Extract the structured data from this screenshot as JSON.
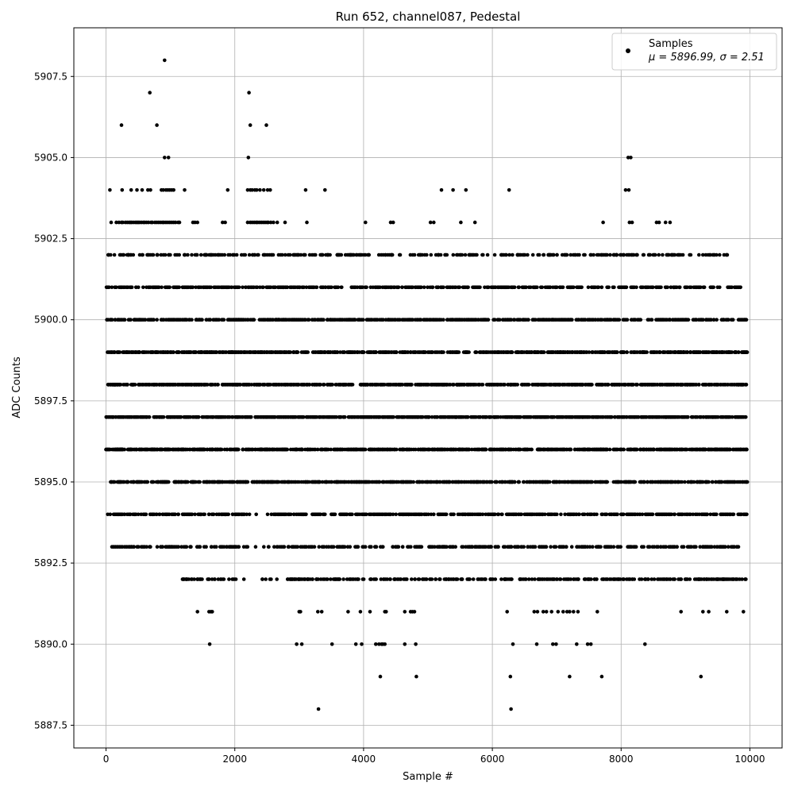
{
  "chart_data": {
    "type": "scatter",
    "title": "Run 652, channel087, Pedestal",
    "xlabel": "Sample #",
    "ylabel": "ADC Counts",
    "xlim": [
      -500,
      10500
    ],
    "ylim": [
      5886.8,
      5909.0
    ],
    "xticks": [
      0,
      2000,
      4000,
      6000,
      8000,
      10000
    ],
    "yticks": [
      5887.5,
      5890.0,
      5892.5,
      5895.0,
      5897.5,
      5900.0,
      5902.5,
      5905.0,
      5907.5
    ],
    "grid": true,
    "legend": {
      "position": "top-right",
      "entries": [
        {
          "label": "Samples",
          "stats": "μ = 5896.99, σ = 2.51",
          "color": "#000000"
        }
      ]
    },
    "marker_color": "#000000",
    "series": [
      {
        "name": "Samples",
        "levels": [
          {
            "y": 5888,
            "x": [
              3300,
              6290
            ]
          },
          {
            "y": 5889,
            "x": [
              4260,
              4820,
              6280,
              7200,
              7700,
              9240
            ]
          },
          {
            "y": 5890,
            "x": [
              1610,
              2960,
              3040,
              3510,
              3880,
              3970,
              4190,
              4240,
              4280,
              4300,
              4330,
              4640,
              4810,
              6320,
              6690,
              6940,
              6990,
              7310,
              7480,
              7530,
              8370
            ]
          },
          {
            "y": 5891,
            "x": [
              1420,
              1600,
              1630,
              1650,
              3000,
              3020,
              3290,
              3350,
              3760,
              3950,
              4100,
              4330,
              4350,
              4640,
              4730,
              4760,
              4790,
              6230,
              6650,
              6700,
              6790,
              6840,
              6920,
              7020,
              7100,
              7160,
              7200,
              7260,
              7330,
              7630,
              8930,
              9270,
              9360,
              9640,
              9900
            ]
          },
          {
            "y": 5892,
            "range": [
              1150,
              9950
            ],
            "count": 380,
            "seed": 13,
            "gap": [
              2000,
              2800
            ]
          },
          {
            "y": 5893,
            "range": [
              80,
              9960
            ],
            "count": 460,
            "seed": 29,
            "gap": [
              2200,
              2650
            ]
          },
          {
            "y": 5894,
            "range": [
              0,
              9960
            ],
            "count": 620,
            "seed": 41,
            "gap": [
              2150,
              2550
            ]
          },
          {
            "y": 5895,
            "range": [
              0,
              9960
            ],
            "count": 780,
            "seed": 53
          },
          {
            "y": 5896,
            "range": [
              0,
              9960
            ],
            "count": 900,
            "seed": 67
          },
          {
            "y": 5897,
            "range": [
              0,
              9960
            ],
            "count": 920,
            "seed": 71
          },
          {
            "y": 5898,
            "range": [
              0,
              9960
            ],
            "count": 880,
            "seed": 83
          },
          {
            "y": 5899,
            "range": [
              0,
              9960
            ],
            "count": 820,
            "seed": 97
          },
          {
            "y": 5900,
            "range": [
              0,
              9960
            ],
            "count": 700,
            "seed": 101
          },
          {
            "y": 5901,
            "range": [
              0,
              9860
            ],
            "count": 560,
            "seed": 113
          },
          {
            "y": 5902,
            "range": [
              30,
              9680
            ],
            "count": 330,
            "seed": 127
          },
          {
            "y": 5903,
            "x": [
              80,
              160,
              200,
              240,
              260,
              300,
              330,
              360,
              380,
              400,
              430,
              460,
              480,
              500,
              520,
              550,
              580,
              600,
              630,
              660,
              700,
              720,
              760,
              790,
              820,
              850,
              880,
              900,
              930,
              960,
              990,
              1020,
              1050,
              1080,
              1120,
              1140,
              1350,
              1380,
              1420,
              1810,
              1850,
              2200,
              2240,
              2270,
              2300,
              2330,
              2350,
              2380,
              2410,
              2440,
              2470,
              2500,
              2520,
              2560,
              2600,
              2660,
              2780,
              3120,
              4030,
              4420,
              4460,
              5040,
              5090,
              5510,
              5730,
              7720,
              8130,
              8170,
              8550,
              8590,
              8690,
              8760
            ]
          },
          {
            "y": 5904,
            "x": [
              60,
              250,
              390,
              480,
              560,
              650,
              690,
              860,
              890,
              930,
              960,
              990,
              1020,
              1050,
              1220,
              1890,
              2200,
              2240,
              2270,
              2310,
              2340,
              2390,
              2450,
              2510,
              2550,
              3100,
              3400,
              5210,
              5390,
              5590,
              6260,
              8070,
              8120
            ]
          },
          {
            "y": 5905,
            "x": [
              910,
              970,
              2210,
              8110,
              8150
            ]
          },
          {
            "y": 5906,
            "x": [
              240,
              790,
              2240,
              2490
            ]
          },
          {
            "y": 5907,
            "x": [
              680,
              2220
            ]
          },
          {
            "y": 5908,
            "x": [
              910
            ]
          }
        ]
      }
    ]
  }
}
